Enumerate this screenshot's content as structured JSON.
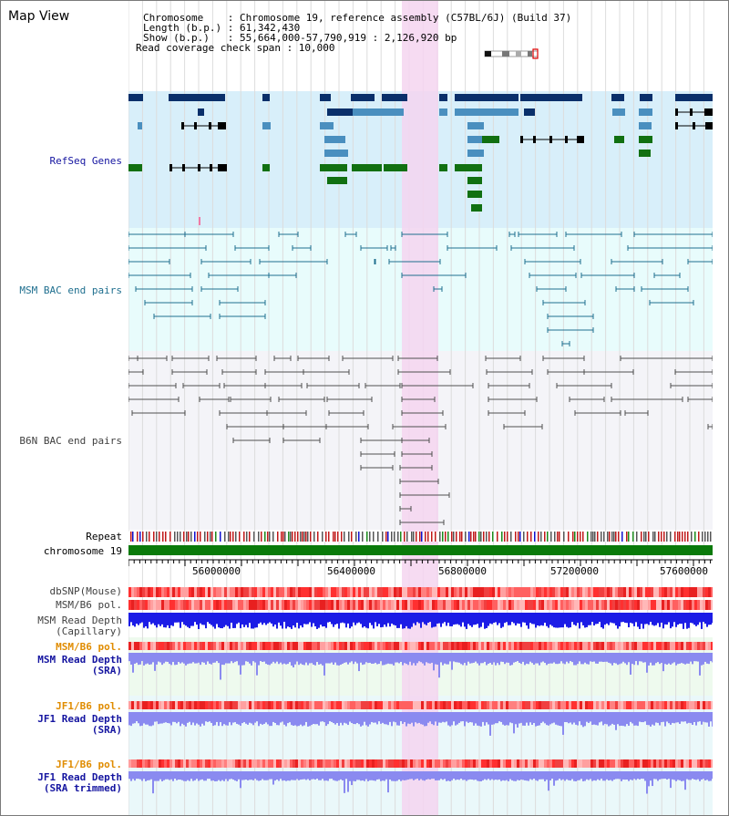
{
  "header": {
    "title": "Map View",
    "info_lines": [
      "Chromosome    : Chromosome 19, reference assembly (C57BL/6J) (Build 37)",
      "Length (b.p.) : 61,342,430",
      "Show (b.p.)   : 55,664,000-57,790,919 : 2,126,920 bp",
      "Read coverage check span : 10,000"
    ]
  },
  "tracks": {
    "refseq": "RefSeq Genes",
    "msm_bac": "MSM BAC end pairs",
    "b6n_bac": "B6N BAC end pairs",
    "repeat": "Repeat",
    "chromosome": "chromosome 19",
    "dbsnp": "dbSNP(Mouse)",
    "msm_b6_pol_1": "MSM/B6 pol.",
    "msm_read_depth_cap_1": "MSM Read Depth",
    "msm_read_depth_cap_2": "(Capillary)",
    "msm_b6_pol_2": "MSM/B6 pol.",
    "msm_read_depth_sra_1": "MSM Read Depth",
    "msm_read_depth_sra_2": "(SRA)",
    "jf1_b6_pol_1": "JF1/B6 pol.",
    "jf1_read_depth_sra_1": "JF1 Read Depth",
    "jf1_read_depth_sra_2": "(SRA)",
    "jf1_b6_pol_2": "JF1/B6 pol.",
    "jf1_read_depth_trim_1": "JF1 Read Depth",
    "jf1_read_depth_trim_2": "(SRA trimmed)"
  },
  "axis": {
    "start_bp": 55664000,
    "end_bp": 57790919,
    "ticks": [
      "56000000",
      "56400000",
      "56800000",
      "57200000",
      "57600000"
    ]
  },
  "colors": {
    "refseq_bg": "#d8effa",
    "msm_bac_bg": "#e8fcfc",
    "b6n_bac_bg": "#f4f4f8",
    "highlight": "#f5d5f0",
    "gene_dark": "#0a2f6a",
    "gene_mid": "#4a8fbf",
    "gene_green": "#117011",
    "msm_line": "#1f6f8f",
    "b6n_line": "#505050",
    "depth_blue": "#1c1ce6",
    "depth_light": "#8a8af0",
    "chrom_green": "#0a7a0a"
  }
}
